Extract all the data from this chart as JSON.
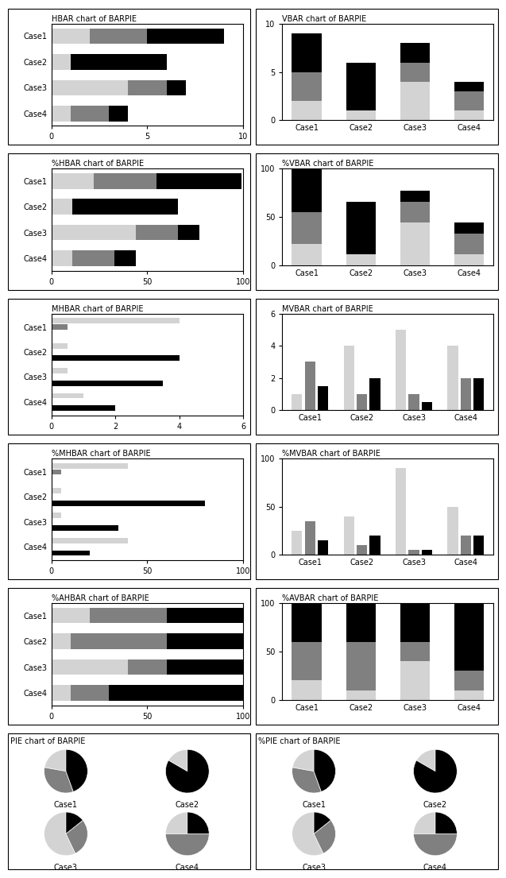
{
  "cases": [
    "Case1",
    "Case2",
    "Case3",
    "Case4"
  ],
  "colors": [
    "#d3d3d3",
    "#808080",
    "#000000"
  ],
  "hbar_data": {
    "title": "HBAR chart of BARPIE",
    "xlim": [
      0,
      10
    ],
    "xticks": [
      0,
      5,
      10
    ],
    "series": [
      [
        2,
        3,
        4
      ],
      [
        1,
        0,
        5
      ],
      [
        4,
        2,
        1
      ],
      [
        1,
        2,
        1
      ]
    ]
  },
  "vbar_data": {
    "title": "VBAR chart of BARPIE",
    "ylim": [
      0,
      10
    ],
    "yticks": [
      0,
      5,
      10
    ],
    "series": [
      [
        2,
        3,
        4
      ],
      [
        1,
        0,
        5
      ],
      [
        4,
        2,
        2
      ],
      [
        1,
        2,
        1
      ]
    ]
  },
  "phbar_data": {
    "title": "%HBAR chart of BARPIE",
    "xlim": [
      0,
      100
    ],
    "xticks": [
      0,
      50,
      100
    ],
    "series": [
      [
        22,
        33,
        44
      ],
      [
        11,
        0,
        55
      ],
      [
        44,
        22,
        11
      ],
      [
        11,
        22,
        11
      ]
    ]
  },
  "pvbar_data": {
    "title": "%VBAR chart of BARPIE",
    "ylim": [
      0,
      100
    ],
    "yticks": [
      0,
      50,
      100
    ],
    "series": [
      [
        22,
        33,
        44
      ],
      [
        11,
        0,
        55
      ],
      [
        44,
        22,
        11
      ],
      [
        11,
        22,
        11
      ]
    ]
  },
  "mhbar_data": {
    "title": "MHBAR chart of BARPIE",
    "xlim": [
      0,
      6
    ],
    "xticks": [
      0,
      2,
      4,
      6
    ],
    "series": [
      [
        4,
        0.5,
        0
      ],
      [
        0.5,
        0,
        4
      ],
      [
        0.5,
        0,
        3.5
      ],
      [
        1,
        0,
        2
      ]
    ]
  },
  "mvbar_data": {
    "title": "MVBAR chart of BARPIE",
    "ylim": [
      0,
      6
    ],
    "yticks": [
      0,
      2,
      4,
      6
    ],
    "series": [
      [
        1,
        3,
        1.5
      ],
      [
        4,
        1,
        2
      ],
      [
        5,
        1,
        0.5
      ],
      [
        4,
        2,
        2
      ]
    ]
  },
  "pmhbar_data": {
    "title": "%MHBAR chart of BARPIE",
    "xlim": [
      0,
      100
    ],
    "xticks": [
      0,
      50,
      100
    ],
    "series": [
      [
        40,
        5,
        0
      ],
      [
        5,
        0,
        80
      ],
      [
        5,
        0,
        35
      ],
      [
        40,
        0,
        20
      ]
    ]
  },
  "pmvbar_data": {
    "title": "%MVBAR chart of BARPIE",
    "ylim": [
      0,
      100
    ],
    "yticks": [
      0,
      50,
      100
    ],
    "series": [
      [
        25,
        35,
        15
      ],
      [
        40,
        10,
        20
      ],
      [
        90,
        5,
        5
      ],
      [
        50,
        20,
        20
      ]
    ]
  },
  "pahbar_data": {
    "title": "%AHBAR chart of BARPIE",
    "xlim": [
      0,
      100
    ],
    "xticks": [
      0,
      50,
      100
    ],
    "series": [
      [
        20,
        40,
        40
      ],
      [
        10,
        50,
        40
      ],
      [
        40,
        20,
        40
      ],
      [
        10,
        20,
        70
      ]
    ]
  },
  "pavbar_data": {
    "title": "%AVBAR chart of BARPIE",
    "ylim": [
      0,
      100
    ],
    "yticks": [
      0,
      50,
      100
    ],
    "series": [
      [
        20,
        40,
        40
      ],
      [
        10,
        50,
        40
      ],
      [
        40,
        20,
        40
      ],
      [
        10,
        20,
        70
      ]
    ]
  },
  "pie_data": {
    "title": "PIE chart of BARPIE",
    "series": [
      [
        2,
        3,
        4
      ],
      [
        1,
        0,
        5
      ],
      [
        4,
        2,
        1
      ],
      [
        1,
        2,
        1
      ]
    ]
  },
  "ppie_data": {
    "title": "%PIE chart of BARPIE",
    "series": [
      [
        22,
        33,
        44
      ],
      [
        11,
        0,
        55
      ],
      [
        44,
        22,
        11
      ],
      [
        11,
        22,
        11
      ]
    ]
  }
}
